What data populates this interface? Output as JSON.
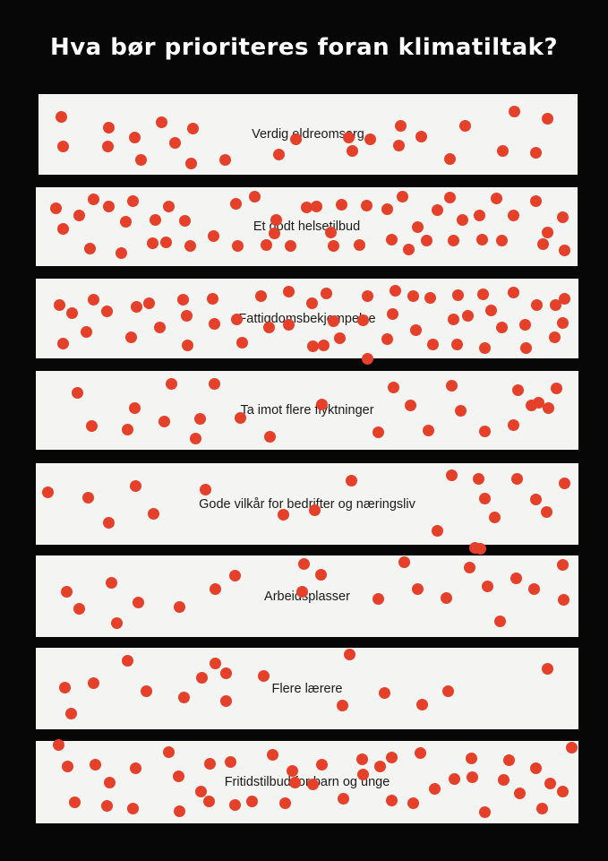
{
  "title": "Hva bør prioriteres foran klimatiltak?",
  "dot_color": "#e5402a",
  "strips": [
    {
      "label": "Verdig eldreomsorg"
    },
    {
      "label": "Et godt helsetilbud"
    },
    {
      "label": "Fattigdomsbekjempelse"
    },
    {
      "label": "Ta imot flere flyktninger"
    },
    {
      "label": "Gode vilkår for bedrifter og næringsliv"
    },
    {
      "label": "Arbeidsplasser"
    },
    {
      "label": "Flere lærere"
    },
    {
      "label": "Fritidstilbud for barn og unge"
    }
  ]
}
